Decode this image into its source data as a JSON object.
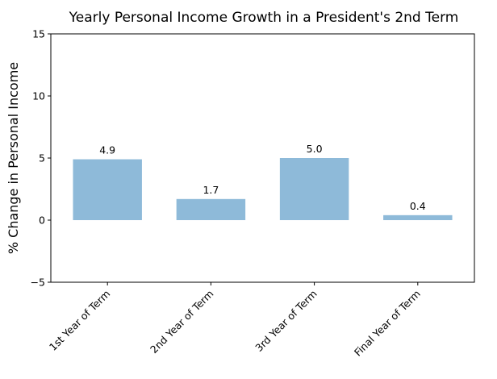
{
  "chart_data": {
    "type": "bar",
    "title": "Yearly Personal Income Growth in a President's 2nd Term",
    "xlabel": "",
    "ylabel": "% Change in Personal Income",
    "categories": [
      "1st Year of Term",
      "2nd Year of Term",
      "3rd Year of Term",
      "Final Year of Term"
    ],
    "values": [
      4.9,
      1.7,
      5.0,
      0.4
    ],
    "data_labels": [
      "4.9",
      "1.7",
      "5.0",
      "0.4"
    ],
    "ylim": [
      -5,
      15
    ],
    "yticks": [
      -5,
      0,
      5,
      10,
      15
    ],
    "ytick_labels": [
      "−5",
      "0",
      "5",
      "10",
      "15"
    ],
    "bar_color": "#8ebad9",
    "grid": false,
    "legend": "none"
  }
}
